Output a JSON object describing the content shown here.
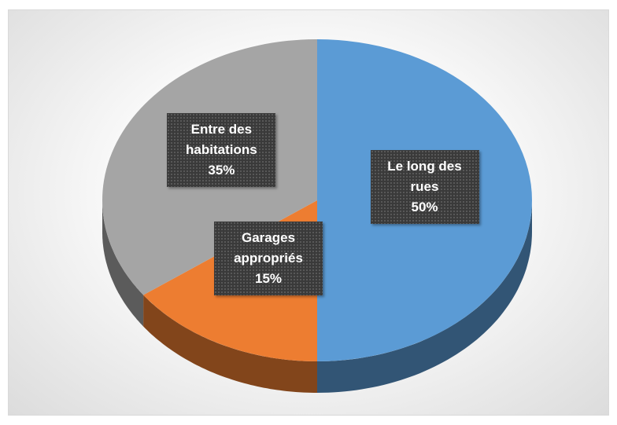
{
  "chart_data": {
    "type": "pie",
    "categories": [
      "Le long des rues",
      "Garages appropriés",
      "Entre des habitations"
    ],
    "values": [
      50,
      15,
      35
    ],
    "value_labels": [
      "50%",
      "15%",
      "35%"
    ],
    "colors": [
      "#5b9bd5",
      "#ed7d31",
      "#a5a5a5"
    ]
  }
}
